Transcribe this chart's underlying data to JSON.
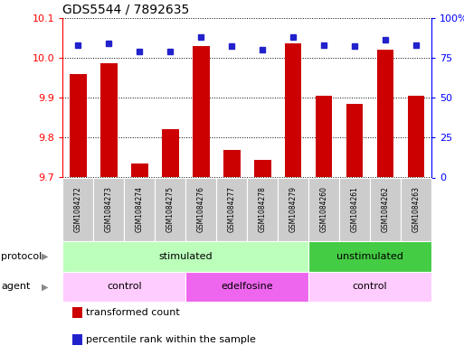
{
  "title": "GDS5544 / 7892635",
  "samples": [
    "GSM1084272",
    "GSM1084273",
    "GSM1084274",
    "GSM1084275",
    "GSM1084276",
    "GSM1084277",
    "GSM1084278",
    "GSM1084279",
    "GSM1084260",
    "GSM1084261",
    "GSM1084262",
    "GSM1084263"
  ],
  "red_values": [
    9.96,
    9.985,
    9.735,
    9.82,
    10.03,
    9.77,
    9.745,
    10.035,
    9.905,
    9.885,
    10.02,
    9.905
  ],
  "blue_values": [
    83,
    84,
    79,
    79,
    88,
    82,
    80,
    88,
    83,
    82,
    86,
    83
  ],
  "ymin": 9.7,
  "ymax": 10.1,
  "y2min": 0,
  "y2max": 100,
  "yticks": [
    9.7,
    9.8,
    9.9,
    10.0,
    10.1
  ],
  "y2ticks": [
    0,
    25,
    50,
    75,
    100
  ],
  "bar_color": "#cc0000",
  "dot_color": "#2222cc",
  "protocol_groups": [
    {
      "label": "stimulated",
      "start": 0,
      "end": 8,
      "color": "#bbffbb"
    },
    {
      "label": "unstimulated",
      "start": 8,
      "end": 12,
      "color": "#44cc44"
    }
  ],
  "agent_groups": [
    {
      "label": "control",
      "start": 0,
      "end": 4,
      "color": "#ffccff"
    },
    {
      "label": "edelfosine",
      "start": 4,
      "end": 8,
      "color": "#ee66ee"
    },
    {
      "label": "control",
      "start": 8,
      "end": 12,
      "color": "#ffccff"
    }
  ],
  "legend_red": "transformed count",
  "legend_blue": "percentile rank within the sample",
  "panel_color": "#cccccc",
  "panel_edge": "#aaaaaa"
}
